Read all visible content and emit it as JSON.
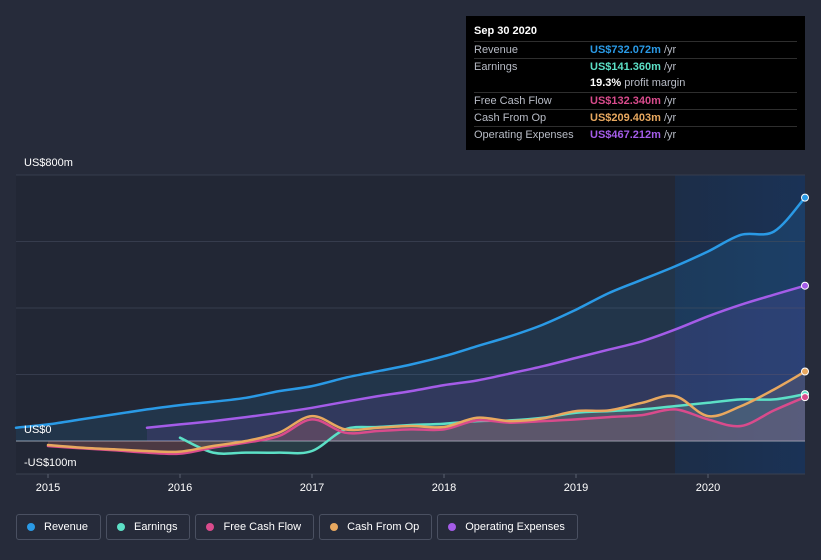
{
  "tooltip": {
    "date": "Sep 30 2020",
    "rows": [
      {
        "label": "Revenue",
        "value": "US$732.072m",
        "unit": "/yr",
        "color": "#2a9ae6"
      },
      {
        "label": "Earnings",
        "value": "US$141.360m",
        "unit": "/yr",
        "color": "#5ce0c6"
      },
      {
        "label": "",
        "value": "19.3%",
        "unit": "profit margin",
        "color": "#ffffff"
      },
      {
        "label": "Free Cash Flow",
        "value": "US$132.340m",
        "unit": "/yr",
        "color": "#d94b8c"
      },
      {
        "label": "Cash From Op",
        "value": "US$209.403m",
        "unit": "/yr",
        "color": "#e8a85f"
      },
      {
        "label": "Operating Expenses",
        "value": "US$467.212m",
        "unit": "/yr",
        "color": "#a45ce8"
      }
    ]
  },
  "legend": [
    {
      "label": "Revenue",
      "color": "#2a9ae6"
    },
    {
      "label": "Earnings",
      "color": "#5ce0c6"
    },
    {
      "label": "Free Cash Flow",
      "color": "#d94b8c"
    },
    {
      "label": "Cash From Op",
      "color": "#e8a85f"
    },
    {
      "label": "Operating Expenses",
      "color": "#a45ce8"
    }
  ],
  "chart_data": {
    "type": "line",
    "title": "",
    "ylabel_top": "US$800m",
    "ylabel_zero": "US$0",
    "ylabel_bottom": "-US$100m",
    "ylim": [
      -100,
      800
    ],
    "xlim": [
      2015.0,
      2020.75
    ],
    "x_ticks": [
      "2015",
      "2016",
      "2017",
      "2018",
      "2019",
      "2020"
    ],
    "x_tick_values": [
      2015,
      2016,
      2017,
      2018,
      2019,
      2020
    ],
    "highlight_from": 2019.75,
    "series": [
      {
        "name": "Revenue",
        "color": "#2a9ae6",
        "fill": true,
        "points": [
          [
            2014.75,
            40
          ],
          [
            2015,
            50
          ],
          [
            2015.25,
            65
          ],
          [
            2015.5,
            80
          ],
          [
            2015.75,
            95
          ],
          [
            2016,
            108
          ],
          [
            2016.25,
            118
          ],
          [
            2016.5,
            130
          ],
          [
            2016.75,
            150
          ],
          [
            2017,
            165
          ],
          [
            2017.25,
            190
          ],
          [
            2017.5,
            210
          ],
          [
            2017.75,
            230
          ],
          [
            2018,
            255
          ],
          [
            2018.25,
            285
          ],
          [
            2018.5,
            315
          ],
          [
            2018.75,
            350
          ],
          [
            2019,
            395
          ],
          [
            2019.25,
            445
          ],
          [
            2019.5,
            485
          ],
          [
            2019.75,
            525
          ],
          [
            2020,
            570
          ],
          [
            2020.25,
            620
          ],
          [
            2020.5,
            630
          ],
          [
            2020.75,
            732
          ]
        ]
      },
      {
        "name": "Operating Expenses",
        "color": "#a45ce8",
        "fill": true,
        "points": [
          [
            2015.75,
            40
          ],
          [
            2016,
            50
          ],
          [
            2016.25,
            60
          ],
          [
            2016.5,
            72
          ],
          [
            2016.75,
            85
          ],
          [
            2017,
            100
          ],
          [
            2017.25,
            118
          ],
          [
            2017.5,
            135
          ],
          [
            2017.75,
            150
          ],
          [
            2018,
            168
          ],
          [
            2018.25,
            182
          ],
          [
            2018.5,
            203
          ],
          [
            2018.75,
            225
          ],
          [
            2019,
            250
          ],
          [
            2019.25,
            275
          ],
          [
            2019.5,
            300
          ],
          [
            2019.75,
            335
          ],
          [
            2020,
            375
          ],
          [
            2020.25,
            410
          ],
          [
            2020.5,
            440
          ],
          [
            2020.75,
            467
          ]
        ]
      },
      {
        "name": "Earnings",
        "color": "#5ce0c6",
        "fill": true,
        "points": [
          [
            2016,
            10
          ],
          [
            2016.25,
            -35
          ],
          [
            2016.5,
            -35
          ],
          [
            2016.75,
            -35
          ],
          [
            2017,
            -30
          ],
          [
            2017.25,
            35
          ],
          [
            2017.5,
            42
          ],
          [
            2017.75,
            48
          ],
          [
            2018,
            52
          ],
          [
            2018.25,
            60
          ],
          [
            2018.5,
            62
          ],
          [
            2018.75,
            70
          ],
          [
            2019,
            85
          ],
          [
            2019.25,
            90
          ],
          [
            2019.5,
            95
          ],
          [
            2019.75,
            105
          ],
          [
            2020,
            115
          ],
          [
            2020.25,
            125
          ],
          [
            2020.5,
            125
          ],
          [
            2020.75,
            141
          ]
        ]
      },
      {
        "name": "Free Cash Flow",
        "color": "#d94b8c",
        "fill": true,
        "points": [
          [
            2015,
            -15
          ],
          [
            2015.25,
            -22
          ],
          [
            2015.5,
            -28
          ],
          [
            2015.75,
            -35
          ],
          [
            2016,
            -38
          ],
          [
            2016.25,
            -20
          ],
          [
            2016.5,
            -5
          ],
          [
            2016.75,
            15
          ],
          [
            2017,
            65
          ],
          [
            2017.25,
            25
          ],
          [
            2017.5,
            30
          ],
          [
            2017.75,
            35
          ],
          [
            2018,
            35
          ],
          [
            2018.25,
            62
          ],
          [
            2018.5,
            55
          ],
          [
            2018.75,
            60
          ],
          [
            2019,
            65
          ],
          [
            2019.25,
            72
          ],
          [
            2019.5,
            78
          ],
          [
            2019.75,
            95
          ],
          [
            2020,
            65
          ],
          [
            2020.25,
            45
          ],
          [
            2020.5,
            92
          ],
          [
            2020.75,
            132
          ]
        ]
      },
      {
        "name": "Cash From Op",
        "color": "#e8a85f",
        "fill": true,
        "points": [
          [
            2015,
            -12
          ],
          [
            2015.25,
            -20
          ],
          [
            2015.5,
            -25
          ],
          [
            2015.75,
            -30
          ],
          [
            2016,
            -32
          ],
          [
            2016.25,
            -15
          ],
          [
            2016.5,
            0
          ],
          [
            2016.75,
            25
          ],
          [
            2017,
            75
          ],
          [
            2017.25,
            35
          ],
          [
            2017.5,
            40
          ],
          [
            2017.75,
            45
          ],
          [
            2018,
            42
          ],
          [
            2018.25,
            70
          ],
          [
            2018.5,
            60
          ],
          [
            2018.75,
            68
          ],
          [
            2019,
            90
          ],
          [
            2019.25,
            92
          ],
          [
            2019.5,
            115
          ],
          [
            2019.75,
            135
          ],
          [
            2020,
            75
          ],
          [
            2020.25,
            105
          ],
          [
            2020.5,
            155
          ],
          [
            2020.75,
            209
          ]
        ]
      }
    ]
  }
}
